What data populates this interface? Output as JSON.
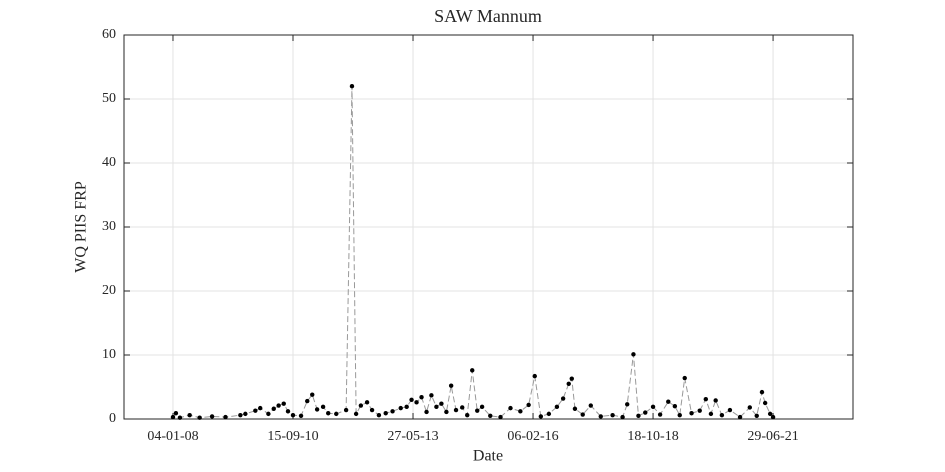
{
  "chart_data": {
    "type": "line",
    "title": "SAW Mannum",
    "x_label": "Date",
    "y_label": "WQ PIIS FRP",
    "x": [
      "2008-01-04",
      "2008-01-28",
      "2008-03-01",
      "2008-05-20",
      "2008-08-10",
      "2008-11-20",
      "2009-03-10",
      "2009-07-10",
      "2009-08-20",
      "2009-11-10",
      "2009-12-20",
      "2010-02-25",
      "2010-04-10",
      "2010-05-20",
      "2010-07-01",
      "2010-08-05",
      "2010-09-15",
      "2010-11-20",
      "2011-01-10",
      "2011-02-20",
      "2011-04-01",
      "2011-05-20",
      "2011-07-01",
      "2011-09-05",
      "2011-11-25",
      "2012-01-12",
      "2012-02-15",
      "2012-03-25",
      "2012-05-15",
      "2012-06-25",
      "2012-08-20",
      "2012-10-15",
      "2012-12-10",
      "2013-02-15",
      "2013-04-05",
      "2013-05-15",
      "2013-06-25",
      "2013-08-05",
      "2013-09-15",
      "2013-10-25",
      "2013-12-05",
      "2014-01-15",
      "2014-02-25",
      "2014-04-05",
      "2014-05-15",
      "2014-07-05",
      "2014-08-15",
      "2014-09-25",
      "2014-11-05",
      "2014-12-15",
      "2015-02-20",
      "2015-05-15",
      "2015-08-05",
      "2015-10-25",
      "2016-01-01",
      "2016-02-20",
      "2016-04-10",
      "2016-06-15",
      "2016-08-20",
      "2016-10-10",
      "2016-11-25",
      "2016-12-20",
      "2017-01-15",
      "2017-03-20",
      "2017-05-25",
      "2017-08-15",
      "2017-11-20",
      "2018-02-10",
      "2018-03-20",
      "2018-05-10",
      "2018-06-20",
      "2018-08-15",
      "2018-10-18",
      "2018-12-15",
      "2019-02-20",
      "2019-04-15",
      "2019-05-25",
      "2019-07-05",
      "2019-08-30",
      "2019-11-05",
      "2019-12-25",
      "2020-02-05",
      "2020-03-15",
      "2020-05-05",
      "2020-07-10",
      "2020-10-01",
      "2020-12-20",
      "2021-02-15",
      "2021-03-30",
      "2021-04-25",
      "2021-06-05",
      "2021-06-29"
    ],
    "values": [
      0.3,
      0.9,
      0.2,
      0.6,
      0.2,
      0.4,
      0.3,
      0.6,
      0.8,
      1.3,
      1.7,
      0.8,
      1.6,
      2.1,
      2.4,
      1.2,
      0.6,
      0.5,
      2.8,
      3.8,
      1.5,
      1.9,
      0.9,
      0.8,
      1.4,
      52,
      0.8,
      2.1,
      2.6,
      1.4,
      0.6,
      0.9,
      1.2,
      1.7,
      1.9,
      3.0,
      2.6,
      3.4,
      1.1,
      3.7,
      1.9,
      2.4,
      1.1,
      5.2,
      1.4,
      1.8,
      0.6,
      7.6,
      1.3,
      1.9,
      0.5,
      0.3,
      1.7,
      1.2,
      2.2,
      6.7,
      0.4,
      0.8,
      1.9,
      3.2,
      5.5,
      6.3,
      1.6,
      0.7,
      2.1,
      0.4,
      0.6,
      0.3,
      2.3,
      10.1,
      0.5,
      1.0,
      1.9,
      0.7,
      2.7,
      2.0,
      0.6,
      6.4,
      0.9,
      1.3,
      3.1,
      0.8,
      2.9,
      0.6,
      1.4,
      0.3,
      1.8,
      0.5,
      4.2,
      2.5,
      0.8,
      0.3
    ],
    "color": "#000000",
    "line_color": "#999999",
    "xlim": [
      "2006-11-28",
      "2023-04-16"
    ],
    "xticks": [
      {
        "value": "2008-01-04",
        "label": "04-01-08"
      },
      {
        "value": "2010-09-15",
        "label": "15-09-10"
      },
      {
        "value": "2013-05-27",
        "label": "27-05-13"
      },
      {
        "value": "2016-02-06",
        "label": "06-02-16"
      },
      {
        "value": "2018-10-18",
        "label": "18-10-18"
      },
      {
        "value": "2021-06-29",
        "label": "29-06-21"
      }
    ],
    "ylim": [
      0,
      60
    ],
    "yticks": [
      0,
      10,
      20,
      30,
      40,
      50,
      60
    ],
    "grid": true
  }
}
